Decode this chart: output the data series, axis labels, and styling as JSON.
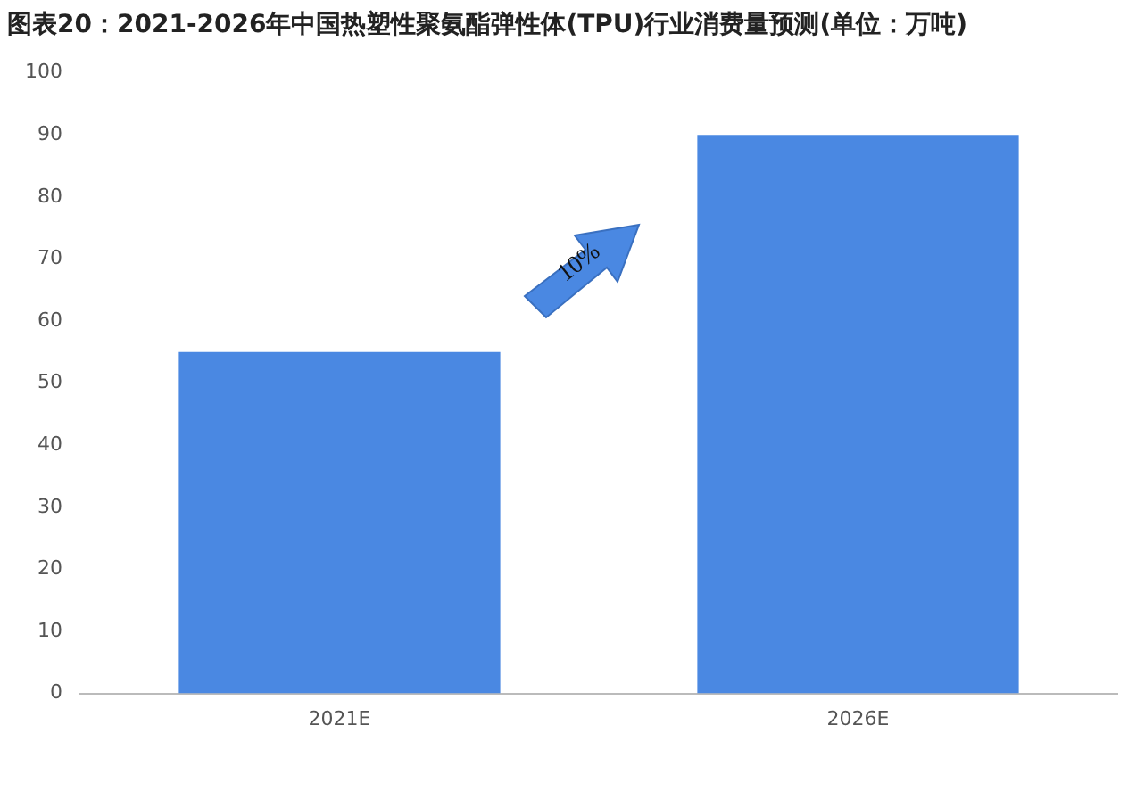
{
  "chart_data": {
    "type": "bar",
    "title": "图表20：2021-2026年中国热塑性聚氨酯弹性体(TPU)行业消费量预测(单位：万吨)",
    "categories": [
      "2021E",
      "2026E"
    ],
    "values": [
      55,
      90
    ],
    "color": "#4a88e2",
    "ylim": [
      0,
      100
    ],
    "yticks": [
      0,
      10,
      20,
      30,
      40,
      50,
      60,
      70,
      80,
      90,
      100
    ],
    "grid": false,
    "legend": false,
    "annotations": [
      "10%"
    ]
  }
}
